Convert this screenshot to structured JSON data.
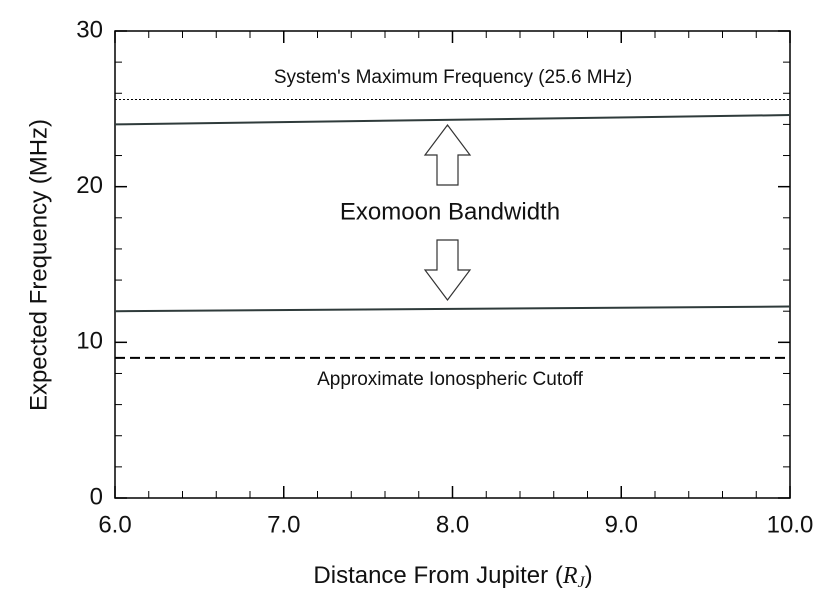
{
  "chart_data": {
    "type": "line",
    "ylabel": "Expected Frequency (MHz)",
    "xlabel": [
      "Distance From Jupiter (",
      "R",
      "J",
      ")"
    ],
    "x": [
      6.0,
      10.0
    ],
    "series": [
      {
        "color": "#2f3b3b",
        "values": [
          24.0,
          24.6
        ]
      },
      {
        "color": "#2f3b3b",
        "values": [
          12.0,
          12.3
        ]
      }
    ],
    "hlines": [
      {
        "value": 25.6,
        "style": "dotted",
        "color": "#000000"
      },
      {
        "value": 9.0,
        "style": "dashed",
        "color": "#000000"
      }
    ],
    "annotations": [
      "System's Maximum Frequency (25.6 MHz)",
      "Exomoon Bandwidth",
      "Approximate Ionospheric Cutoff"
    ],
    "xlim": [
      6.0,
      10.0
    ],
    "xticks": [
      {
        "value": 6,
        "label": "6.0"
      },
      {
        "value": 7,
        "label": "7.0"
      },
      {
        "value": 8,
        "label": "8.0"
      },
      {
        "value": 9,
        "label": "9.0"
      },
      {
        "value": 10,
        "label": "10.0"
      }
    ],
    "xminorticks": [
      6.2,
      6.4,
      6.6,
      6.8,
      7.2,
      7.4,
      7.6,
      7.8,
      8.2,
      8.4,
      8.6,
      8.8,
      9.2,
      9.4,
      9.6,
      9.8
    ],
    "ylim": [
      0,
      30
    ],
    "yticks": [
      0,
      10,
      20,
      30
    ],
    "yminorticks": [
      2,
      4,
      6,
      8,
      12,
      14,
      16,
      18,
      22,
      24,
      26,
      28
    ],
    "grid": false
  }
}
